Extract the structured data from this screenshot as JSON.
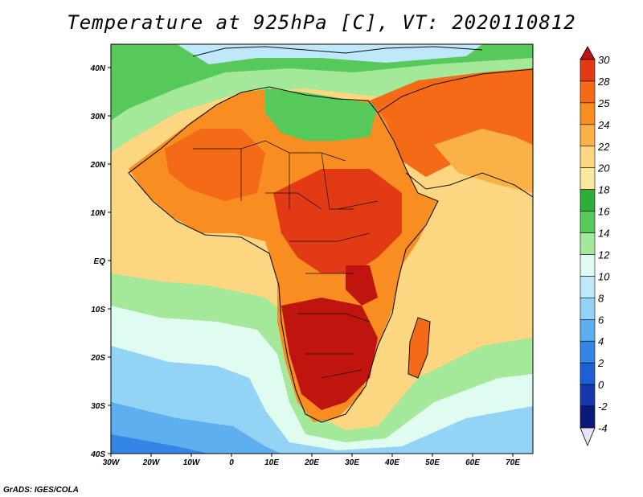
{
  "title": "Temperature at 925hPa [C], VT: 2020110812",
  "credit": "GrADS: IGES/COLA",
  "lon_labels": [
    "30W",
    "20W",
    "10W",
    "0",
    "10E",
    "20E",
    "30E",
    "40E",
    "50E",
    "60E",
    "70E"
  ],
  "lat_labels": [
    "40N",
    "30N",
    "20N",
    "10N",
    "EQ",
    "10S",
    "20S",
    "30S",
    "40S"
  ],
  "colorbar": {
    "labels": [
      "30",
      "28",
      "25",
      "24",
      "22",
      "20",
      "18",
      "16",
      "14",
      "12",
      "10",
      "8",
      "6",
      "4",
      "2",
      "0",
      "-2",
      "-4"
    ],
    "colors": [
      "#c0150e",
      "#e23a14",
      "#f46a17",
      "#f88e22",
      "#fab246",
      "#fcd680",
      "#fae89c",
      "#2ead3a",
      "#56c95a",
      "#a4e89a",
      "#e0fbf0",
      "#bfe9fb",
      "#93d3f6",
      "#5eaff0",
      "#3386e6",
      "#1f5fd6",
      "#1438b0",
      "#0a1a7a",
      "#e4e4fb"
    ]
  },
  "map": {
    "domain": {
      "lon": [
        -30,
        75
      ],
      "lat": [
        -40,
        45
      ]
    },
    "fields": [
      {
        "name": "ocean-west",
        "color": "#fcd680"
      },
      {
        "name": "southern-cold",
        "color": "#93d3f6"
      },
      {
        "name": "africa-warm",
        "color": "#f88e22"
      },
      {
        "name": "europe-mild",
        "color": "#56c95a"
      },
      {
        "name": "hot-core",
        "color": "#e23a14"
      }
    ]
  }
}
